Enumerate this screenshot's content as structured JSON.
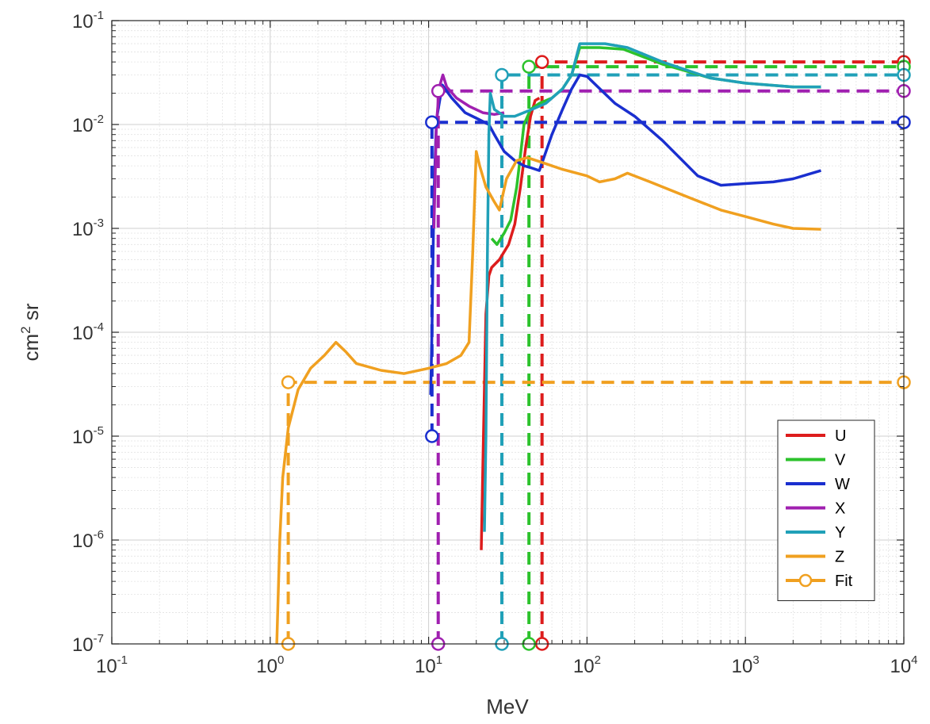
{
  "chart_data": {
    "type": "line",
    "xlabel": "MeV",
    "ylabel": "cm",
    "ylabel_sup": "2",
    "ylabel_suffix": " sr",
    "xscale": "log",
    "yscale": "log",
    "xlim": [
      0.1,
      10000
    ],
    "ylim": [
      1e-07,
      0.1
    ],
    "grid": true,
    "minor_grid": true,
    "legend_position": "bottom-right",
    "x_ticks": [
      {
        "base": "10",
        "exp": "-1",
        "value": 0.1
      },
      {
        "base": "10",
        "exp": "0",
        "value": 1
      },
      {
        "base": "10",
        "exp": "1",
        "value": 10
      },
      {
        "base": "10",
        "exp": "2",
        "value": 100
      },
      {
        "base": "10",
        "exp": "3",
        "value": 1000
      },
      {
        "base": "10",
        "exp": "4",
        "value": 10000
      }
    ],
    "y_ticks": [
      {
        "base": "10",
        "exp": "-7",
        "value": 1e-07
      },
      {
        "base": "10",
        "exp": "-6",
        "value": 1e-06
      },
      {
        "base": "10",
        "exp": "-5",
        "value": 1e-05
      },
      {
        "base": "10",
        "exp": "-4",
        "value": 0.0001
      },
      {
        "base": "10",
        "exp": "-3",
        "value": 0.001
      },
      {
        "base": "10",
        "exp": "-2",
        "value": 0.01
      },
      {
        "base": "10",
        "exp": "-1",
        "value": 0.1
      }
    ],
    "series": [
      {
        "name": "U",
        "color": "#dd1c1c",
        "curve": [
          [
            21.5,
            8e-07
          ],
          [
            22,
            5e-06
          ],
          [
            23,
            0.00015
          ],
          [
            24,
            0.00035
          ],
          [
            25,
            0.00042
          ],
          [
            28,
            0.0005
          ],
          [
            32,
            0.0007
          ],
          [
            35,
            0.0011
          ],
          [
            38,
            0.0025
          ],
          [
            41,
            0.006
          ],
          [
            44,
            0.012
          ],
          [
            47,
            0.017
          ],
          [
            50,
            0.018
          ]
        ],
        "fit_threshold": 52,
        "fit_value": 0.04
      },
      {
        "name": "V",
        "color": "#2cc22c",
        "curve": [
          [
            25,
            0.0008
          ],
          [
            27,
            0.0007
          ],
          [
            30,
            0.0009
          ],
          [
            33,
            0.0012
          ],
          [
            36,
            0.0025
          ],
          [
            38,
            0.005
          ],
          [
            40,
            0.01
          ],
          [
            44,
            0.014
          ],
          [
            50,
            0.016
          ],
          [
            60,
            0.018
          ],
          [
            70,
            0.022
          ],
          [
            80,
            0.03
          ],
          [
            90,
            0.055
          ],
          [
            120,
            0.055
          ],
          [
            170,
            0.053
          ],
          [
            300,
            0.038
          ],
          [
            600,
            0.028
          ],
          [
            1000,
            0.025
          ],
          [
            2000,
            0.023
          ],
          [
            3000,
            0.023
          ]
        ],
        "fit_threshold": 43,
        "fit_value": 0.036
      },
      {
        "name": "W",
        "color": "#1a2fcf",
        "curve": [
          [
            10.3,
            2.5e-05
          ],
          [
            10.5,
            0.0001
          ],
          [
            10.8,
            0.002
          ],
          [
            11.2,
            0.011
          ],
          [
            12.2,
            0.024
          ],
          [
            14,
            0.018
          ],
          [
            17,
            0.013
          ],
          [
            20,
            0.0115
          ],
          [
            24,
            0.01
          ],
          [
            26,
            0.008
          ],
          [
            30,
            0.0055
          ],
          [
            35,
            0.0045
          ],
          [
            40,
            0.004
          ],
          [
            45,
            0.0038
          ],
          [
            50,
            0.0036
          ],
          [
            60,
            0.008
          ],
          [
            70,
            0.014
          ],
          [
            80,
            0.022
          ],
          [
            90,
            0.03
          ],
          [
            100,
            0.029
          ],
          [
            150,
            0.016
          ],
          [
            200,
            0.012
          ],
          [
            300,
            0.007
          ],
          [
            500,
            0.0032
          ],
          [
            700,
            0.0026
          ],
          [
            1000,
            0.0027
          ],
          [
            1500,
            0.0028
          ],
          [
            2000,
            0.003
          ],
          [
            3000,
            0.0036
          ]
        ],
        "fit_threshold": 10.5,
        "fit_value": 0.0105,
        "fit_low": 1e-05
      },
      {
        "name": "X",
        "color": "#a020b0",
        "curve": [
          [
            10.8,
            0.001
          ],
          [
            11.2,
            0.01
          ],
          [
            11.7,
            0.023
          ],
          [
            12.3,
            0.03
          ],
          [
            13,
            0.023
          ],
          [
            15,
            0.018
          ],
          [
            18,
            0.015
          ],
          [
            22,
            0.013
          ],
          [
            26,
            0.0125
          ],
          [
            30,
            0.013
          ]
        ],
        "fit_threshold": 11.5,
        "fit_value": 0.021
      },
      {
        "name": "Y",
        "color": "#20a0b8",
        "curve": [
          [
            22.5,
            1.2e-06
          ],
          [
            23,
            1e-05
          ],
          [
            23.5,
            0.0005
          ],
          [
            24,
            0.008
          ],
          [
            24.5,
            0.02
          ],
          [
            26,
            0.014
          ],
          [
            30,
            0.012
          ],
          [
            35,
            0.012
          ],
          [
            45,
            0.014
          ],
          [
            55,
            0.016
          ],
          [
            70,
            0.022
          ],
          [
            80,
            0.03
          ],
          [
            90,
            0.06
          ],
          [
            130,
            0.06
          ],
          [
            180,
            0.055
          ],
          [
            300,
            0.04
          ],
          [
            600,
            0.028
          ],
          [
            1000,
            0.025
          ],
          [
            2000,
            0.023
          ],
          [
            3000,
            0.023
          ]
        ],
        "fit_threshold": 29,
        "fit_value": 0.03
      },
      {
        "name": "Z",
        "color": "#f0a020",
        "curve": [
          [
            1.1,
            1e-07
          ],
          [
            1.15,
            1e-06
          ],
          [
            1.2,
            4e-06
          ],
          [
            1.3,
            1.2e-05
          ],
          [
            1.5,
            2.8e-05
          ],
          [
            1.8,
            4.5e-05
          ],
          [
            2.2,
            6e-05
          ],
          [
            2.6,
            8e-05
          ],
          [
            3,
            6.5e-05
          ],
          [
            3.5,
            5e-05
          ],
          [
            5,
            4.3e-05
          ],
          [
            7,
            4e-05
          ],
          [
            10,
            4.5e-05
          ],
          [
            13,
            5e-05
          ],
          [
            16,
            6e-05
          ],
          [
            18,
            8e-05
          ],
          [
            19,
            0.0006
          ],
          [
            20,
            0.0055
          ],
          [
            21,
            0.004
          ],
          [
            23,
            0.0025
          ],
          [
            26,
            0.0018
          ],
          [
            28,
            0.0015
          ],
          [
            31,
            0.003
          ],
          [
            36,
            0.0045
          ],
          [
            42,
            0.0048
          ],
          [
            50,
            0.0044
          ],
          [
            70,
            0.0037
          ],
          [
            100,
            0.0032
          ],
          [
            120,
            0.0028
          ],
          [
            150,
            0.003
          ],
          [
            180,
            0.0034
          ],
          [
            250,
            0.0028
          ],
          [
            400,
            0.0021
          ],
          [
            700,
            0.0015
          ],
          [
            1000,
            0.0013
          ],
          [
            1500,
            0.0011
          ],
          [
            2000,
            0.001
          ],
          [
            3000,
            0.00098
          ]
        ],
        "fit_threshold": 1.3,
        "fit_value": 3.3e-05
      }
    ],
    "legend": [
      {
        "label": "U",
        "color": "#dd1c1c",
        "marker": false
      },
      {
        "label": "V",
        "color": "#2cc22c",
        "marker": false
      },
      {
        "label": "W",
        "color": "#1a2fcf",
        "marker": false
      },
      {
        "label": "X",
        "color": "#a020b0",
        "marker": false
      },
      {
        "label": "Y",
        "color": "#20a0b8",
        "marker": false
      },
      {
        "label": "Z",
        "color": "#f0a020",
        "marker": false
      },
      {
        "label": "Fit",
        "color": "#f0a020",
        "marker": true
      }
    ]
  }
}
